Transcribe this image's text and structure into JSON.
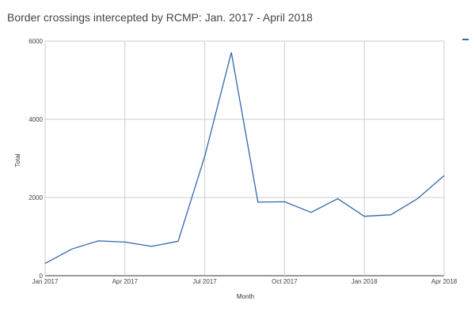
{
  "chart_data": {
    "type": "line",
    "title": "Border crossings intercepted by RCMP: Jan. 2017 - April 2018",
    "xlabel": "Month",
    "ylabel": "Total",
    "x": [
      "Jan 2017",
      "Feb 2017",
      "Mar 2017",
      "Apr 2017",
      "May 2017",
      "Jun 2017",
      "Jul 2017",
      "Aug 2017",
      "Sep 2017",
      "Oct 2017",
      "Nov 2017",
      "Dec 2017",
      "Jan 2018",
      "Feb 2018",
      "Mar 2018",
      "Apr 2018"
    ],
    "x_ticks": [
      "Jan 2017",
      "Apr 2017",
      "Jul 2017",
      "Oct 2017",
      "Jan 2018",
      "Apr 2018"
    ],
    "y_ticks": [
      "0",
      "2000",
      "4000",
      "6000"
    ],
    "ylim": [
      0,
      6000
    ],
    "grid": true,
    "legend": "right",
    "series": [
      {
        "name": "",
        "color": "#3366aa",
        "values": [
          315,
          680,
          890,
          860,
          750,
          880,
          3050,
          5710,
          1880,
          1890,
          1620,
          1970,
          1520,
          1560,
          1970,
          2560
        ]
      }
    ]
  }
}
